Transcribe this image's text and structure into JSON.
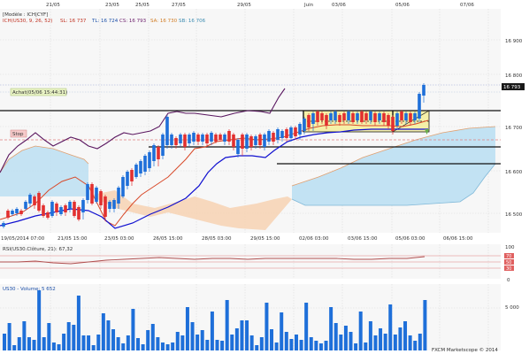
{
  "header": {
    "instrument": "[Modèle : ICH|CYF]",
    "ich_label": "ICH(US30, 9, 26, 52)",
    "sl": "SL: 16 737",
    "tl": "TL: 16 724",
    "cs": "CS: 16 793",
    "sa": "SA: 16 730",
    "sb": "SB: 16 706"
  },
  "badges": {
    "achat": "Achat(05/06 15:44:31)",
    "stop": "Stop",
    "last_price": "16 793"
  },
  "top_dates": [
    "21/05",
    "23/05",
    "25/05",
    "27/05",
    "29/05",
    "Juin",
    "03/06",
    "05/06",
    "07/06"
  ],
  "bottom_dates": [
    "19/05/2014 07:00",
    "21/05 15:00",
    "23/05 03:00",
    "26/05 15:00",
    "28/05 03:00",
    "29/05 15:00",
    "02/06 03:00",
    "03/06 15:00",
    "05/06 03:00",
    "06/06 15:00"
  ],
  "price_axis": [
    "16 900",
    "16 800",
    "16 700",
    "16 600",
    "16 500"
  ],
  "rsi": {
    "label": "RSI(US30.Clôture, 21): 67,32",
    "axis": [
      "100",
      "70",
      "50",
      "30",
      "0"
    ]
  },
  "volume": {
    "label": "US30 - Volume: 5 652",
    "axis": [
      "5 000"
    ],
    "values": [
      1900,
      3100,
      600,
      1500,
      3300,
      1500,
      1200,
      6800,
      1500,
      3100,
      900,
      700,
      1900,
      3200,
      2900,
      6200,
      1700,
      1700,
      600,
      1800,
      4200,
      3400,
      2400,
      1500,
      800,
      1700,
      4700,
      1400,
      700,
      2300,
      3000,
      1500,
      900,
      700,
      900,
      2100,
      1700,
      4900,
      3200,
      1800,
      2300,
      1200,
      4400,
      1200,
      1100,
      5700,
      1800,
      2500,
      3400,
      3400,
      1700,
      600,
      1500,
      5400,
      2400,
      900,
      4300,
      2100,
      1300,
      1800,
      1200,
      5400,
      1500,
      1100,
      800,
      1100,
      4900,
      3100,
      1800,
      2800,
      2100,
      800,
      4400,
      900,
      3300,
      1700,
      2500,
      1900,
      5200,
      1800,
      2600,
      3300,
      1700,
      1100,
      1900,
      5700
    ]
  },
  "copyright": "FXCM Marketscope © 2014",
  "colors": {
    "bull": "#1e6fd9",
    "bear": "#e23030",
    "tenkan": "#d84a2a",
    "kijun": "#1010d0",
    "chikou": "#5a1760",
    "kumo_bull": "#bfe0f2",
    "kumo_bear": "#f6d4b6",
    "box": "#f5f0a8",
    "volume": "#1e6fd9",
    "rsi": "#b05050"
  }
}
